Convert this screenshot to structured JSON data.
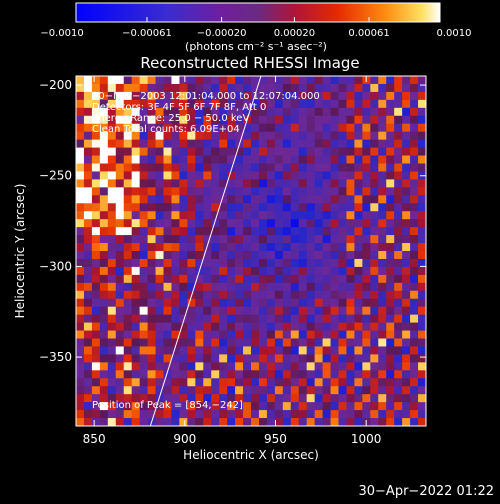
{
  "chart_data": {
    "type": "heatmap",
    "title": "Reconstructed RHESSI Image",
    "xlabel": "Heliocentric X (arcsec)",
    "ylabel": "Heliocentric Y (arcsec)",
    "xlim": [
      840,
      1033
    ],
    "ylim": [
      -388,
      -195
    ],
    "xticks": [
      850,
      900,
      950,
      1000
    ],
    "yticks": [
      -200,
      -250,
      -300,
      -350
    ],
    "colorbar": {
      "min": -0.001,
      "max": 0.001,
      "tick_values": [
        -0.001,
        -0.00061,
        -0.0002,
        0.0002,
        0.00061,
        0.001
      ],
      "tick_labels": [
        "−0.0010",
        "−0.00061",
        "−0.00020",
        "0.00020",
        "0.00061",
        "0.0010"
      ],
      "label": "(photons cm⁻² s⁻¹ asec⁻²)"
    },
    "annotations": [
      "20−Mar−2003 12:01:04.000 to 12:07:04.000",
      "Detectors: 3F 4F 5F 6F 7F 8F, Att 0",
      "Energy Range: 25.0 − 50.0 keV",
      "Clean    Total counts: 6.09E+04"
    ],
    "peak_label": "Position of Peak = [854,−242]",
    "peak": [
      854,
      -242
    ],
    "limb_line": [
      [
        881,
        -388
      ],
      [
        942,
        -195
      ]
    ],
    "grid": false
  },
  "footer": {
    "timestamp": "30−Apr−2022 01:22"
  }
}
